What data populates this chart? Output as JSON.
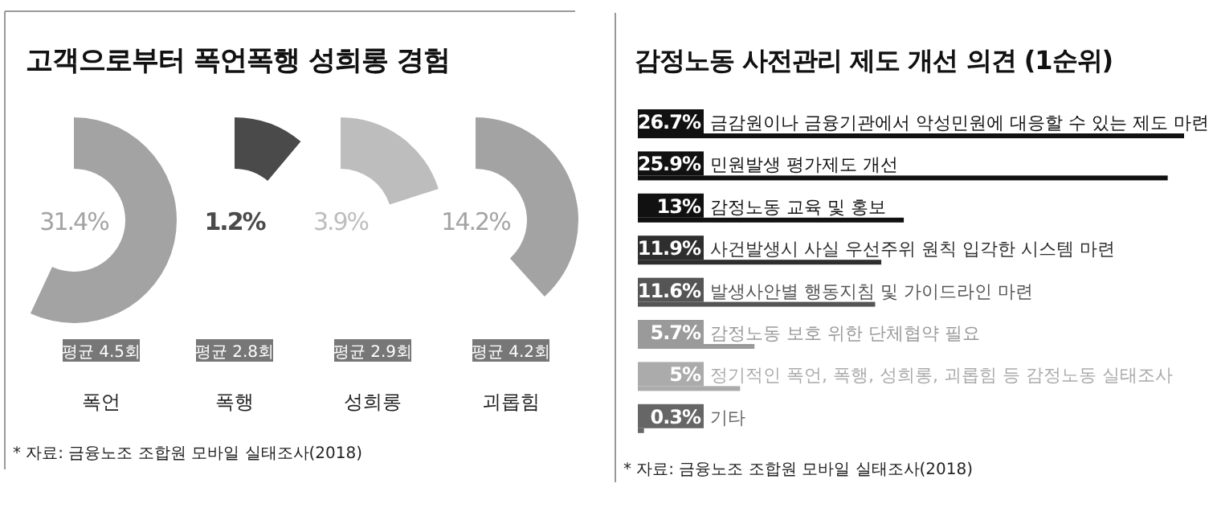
{
  "chart_data": [
    {
      "type": "other",
      "title": "고객으로부터 폭언폭행 성희롱 경험",
      "categories": [
        "폭언",
        "폭행",
        "성희롱",
        "괴롭힘"
      ],
      "values": [
        31.4,
        1.2,
        3.9,
        14.2
      ],
      "value_labels": [
        "31.4%",
        "1.2%",
        "3.9%",
        "14.2%"
      ],
      "colors": [
        "#a3a3a3",
        "#4a4a4a",
        "#bdbdbd",
        "#a3a3a3"
      ],
      "annotations": [
        {
          "text": "평균 4.5회",
          "x": "폭언"
        },
        {
          "text": "평균 2.8회",
          "x": "폭행"
        },
        {
          "text": "평균 2.9회",
          "x": "성희롱"
        },
        {
          "text": "평균 4.2회",
          "x": "괴롭힘"
        },
        "* 자료: 금융노조 조합원 모바일 실태조사(2018)"
      ]
    },
    {
      "type": "bar",
      "orientation": "horizontal",
      "title": "감정노동 사전관리 제도 개선 의견 (1순위)",
      "categories": [
        "금감원이나 금융기관에서 악성민원에 대응할 수 있는 제도 마련",
        "민원발생 평가제도 개선",
        "감정노동 교육 및 홍보",
        "사건발생시 사실 우선주위 원칙 입각한 시스템 마련",
        "발생사안별 행동지침 및 가이드라인 마련",
        "감정노동 보호 위한 단체협약 필요",
        "정기적인 폭언, 폭행, 성희롱, 괴롭힘 등 감정노동 실태조사",
        "기타"
      ],
      "values": [
        26.7,
        25.9,
        13,
        11.9,
        11.6,
        5.7,
        5,
        0.3
      ],
      "value_labels": [
        "26.7%",
        "25.9%",
        "13%",
        "11.9%",
        "11.6%",
        "5.7%",
        "5%",
        "0.3%"
      ],
      "colors": [
        "#111111",
        "#111111",
        "#111111",
        "#2e2e2e",
        "#555555",
        "#9a9a9a",
        "#ababab",
        "#666666"
      ],
      "annotations": [
        "* 자료: 금융노조 조합원 모바일 실태조사(2018)"
      ]
    }
  ]
}
